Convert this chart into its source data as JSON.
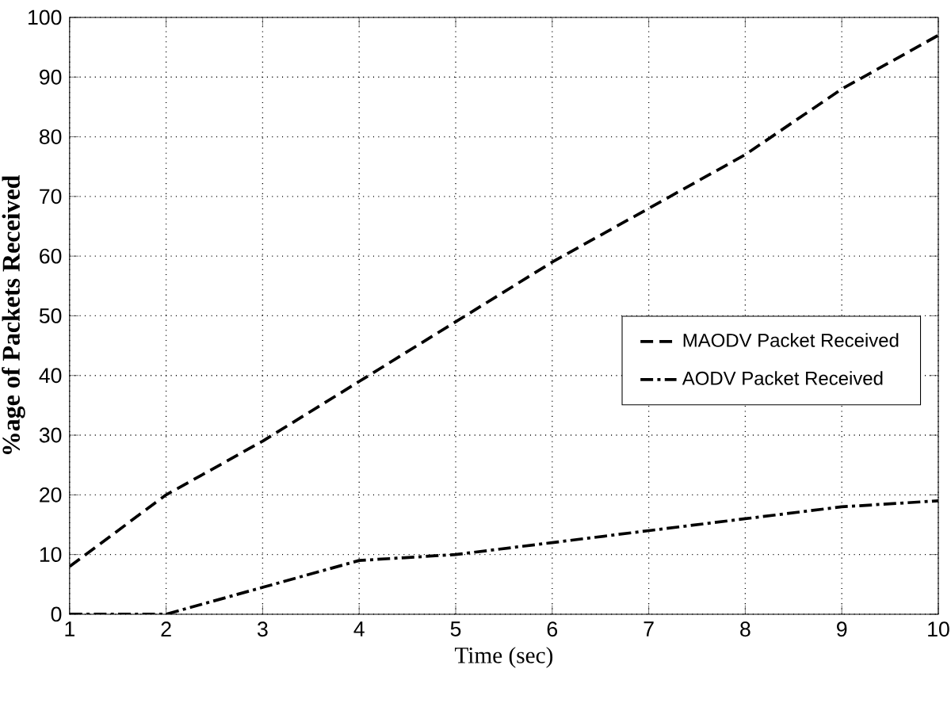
{
  "chart_data": {
    "type": "line",
    "xlabel": "Time (sec)",
    "ylabel": "%age of Packets Received",
    "x": [
      1,
      2,
      3,
      4,
      5,
      6,
      7,
      8,
      9,
      10
    ],
    "series": [
      {
        "name": "MAODV Packet Received",
        "color": "#000000",
        "line_style": "dashed",
        "values": [
          8,
          20,
          29,
          39,
          49,
          59,
          68,
          77,
          88,
          97
        ]
      },
      {
        "name": "AODV Packet Received",
        "color": "#000000",
        "line_style": "dashdot",
        "values": [
          0,
          0,
          4.5,
          9,
          10,
          12,
          14,
          16,
          18,
          19
        ]
      }
    ],
    "xlim": [
      1,
      10
    ],
    "ylim": [
      0,
      100
    ],
    "xticks": [
      1,
      2,
      3,
      4,
      5,
      6,
      7,
      8,
      9,
      10
    ],
    "yticks": [
      0,
      10,
      20,
      30,
      40,
      50,
      60,
      70,
      80,
      90,
      100
    ],
    "grid": true,
    "legend": "right"
  }
}
